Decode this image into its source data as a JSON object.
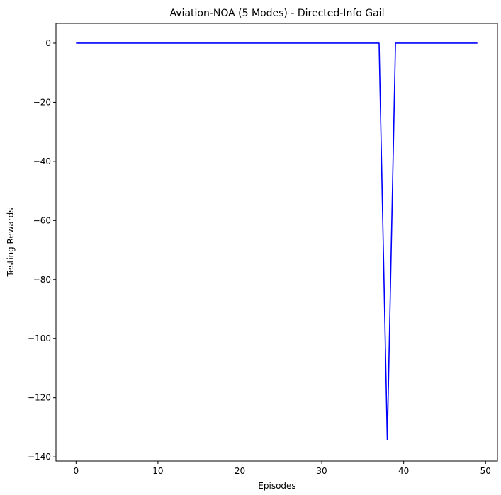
{
  "chart_data": {
    "type": "line",
    "title": "Aviation-NOA (5 Modes) - Directed-Info Gail",
    "xlabel": "Episodes",
    "ylabel": "Testing Rewards",
    "xlim": [
      -2.45,
      51.45
    ],
    "ylim": [
      -141.4,
      6.7
    ],
    "xticks": [
      0,
      10,
      20,
      30,
      40,
      50
    ],
    "yticks": [
      0,
      -20,
      -40,
      -60,
      -80,
      -100,
      -120,
      -140
    ],
    "grid": false,
    "series": [
      {
        "color": "#0000ff",
        "x": [
          0,
          1,
          2,
          3,
          4,
          5,
          6,
          7,
          8,
          9,
          10,
          11,
          12,
          13,
          14,
          15,
          16,
          17,
          18,
          19,
          20,
          21,
          22,
          23,
          24,
          25,
          26,
          27,
          28,
          29,
          30,
          31,
          32,
          33,
          34,
          35,
          36,
          37,
          38,
          39,
          40,
          41,
          42,
          43,
          44,
          45,
          46,
          47,
          48,
          49
        ],
        "y": [
          0,
          0,
          0,
          0,
          0,
          0,
          0,
          0,
          0,
          0,
          0,
          0,
          0,
          0,
          0,
          0,
          0,
          0,
          0,
          0,
          0,
          0,
          0,
          0,
          0,
          0,
          0,
          0,
          0,
          0,
          0,
          0,
          0,
          0,
          0,
          0,
          0,
          0,
          -134.2,
          0,
          0,
          0,
          0,
          0,
          0,
          0,
          0,
          0,
          0,
          0
        ]
      }
    ]
  }
}
